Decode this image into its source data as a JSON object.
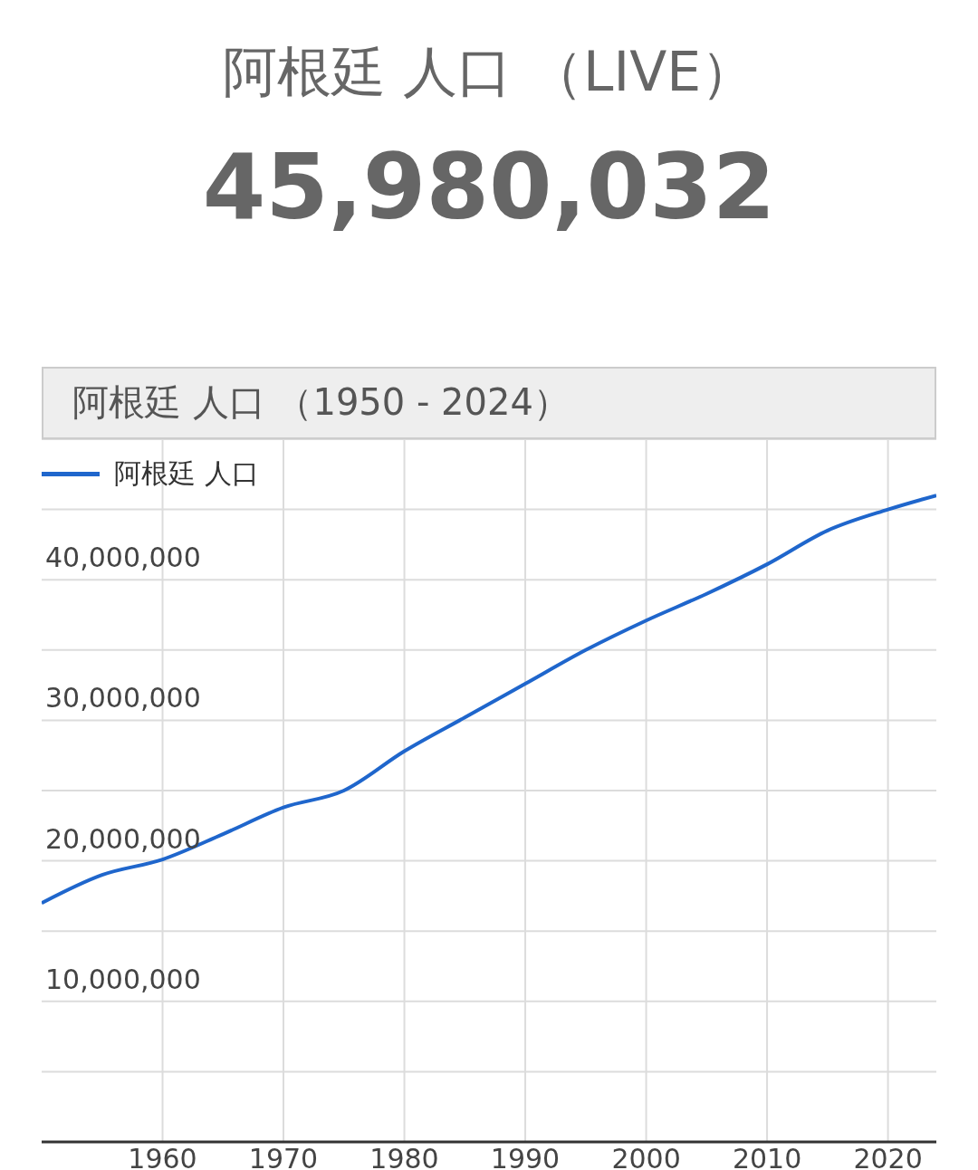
{
  "chart_data": {
    "type": "line",
    "title": "阿根廷 人口 （LIVE）",
    "subtitle": "45,980,032",
    "annotations": [
      "阿根廷 人口 （1950 - 2024）"
    ],
    "x": [
      1950,
      1955,
      1960,
      1965,
      1970,
      1975,
      1980,
      1985,
      1990,
      1995,
      2000,
      2005,
      2010,
      2015,
      2020,
      2024
    ],
    "series": [
      {
        "name": "阿根廷 人口",
        "color": "#1f66cc",
        "values": [
          17000000,
          19000000,
          20100000,
          21900000,
          23800000,
          25000000,
          27800000,
          30200000,
          32600000,
          35000000,
          37100000,
          39000000,
          41100000,
          43500000,
          45000000,
          46000000
        ]
      }
    ],
    "xlim": [
      1950,
      2024
    ],
    "xticks": [
      1960,
      1970,
      1980,
      1990,
      2000,
      2010,
      2020
    ],
    "ylim": [
      0,
      50000000
    ],
    "yticks": [
      {
        "value": 0,
        "label": null
      },
      {
        "value": 5000000,
        "label": null
      },
      {
        "value": 10000000,
        "label": "10,000,000"
      },
      {
        "value": 15000000,
        "label": null
      },
      {
        "value": 20000000,
        "label": "20,000,000"
      },
      {
        "value": 25000000,
        "label": null
      },
      {
        "value": 30000000,
        "label": "30,000,000"
      },
      {
        "value": 35000000,
        "label": null
      },
      {
        "value": 40000000,
        "label": "40,000,000"
      },
      {
        "value": 45000000,
        "label": null
      },
      {
        "value": 50000000,
        "label": null
      }
    ],
    "grid": true,
    "legend": "top left",
    "marker": "none",
    "line_style": "solid"
  }
}
